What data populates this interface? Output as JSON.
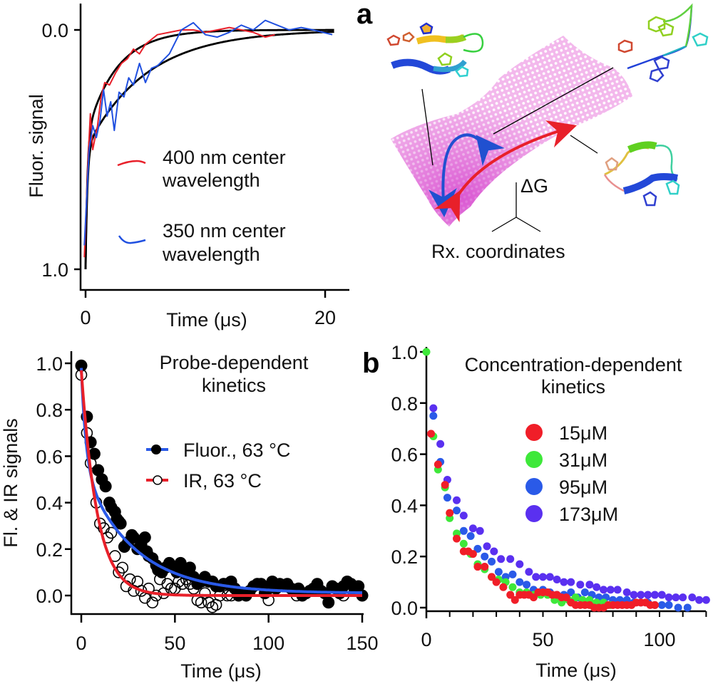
{
  "figure": {
    "panel_a_label": "a",
    "panel_b_label": "b",
    "landscape": {
      "delta_g_label": "ΔG",
      "rx_label": "Rx. coordinates",
      "surface_color": "#e060d0",
      "folding_arrow_color": "#2050d0",
      "unfolding_arrow_color": "#e8202a",
      "structures": [
        "folded-hairpin-structure",
        "unfolded-extended-structure",
        "intermediate-structure"
      ]
    }
  },
  "chart_data": [
    {
      "id": "fluor-wavelength",
      "type": "line",
      "title": "",
      "xlabel": "Time (μs)",
      "ylabel": "Fluor. signal",
      "xlim": [
        0,
        22
      ],
      "ylim": [
        0.0,
        1.0
      ],
      "y_inverted": true,
      "xticks": [
        0,
        20
      ],
      "xtick_labels": [
        "0",
        "20"
      ],
      "yticks": [
        0.0,
        1.0
      ],
      "ytick_labels": [
        "0.0",
        "1.0"
      ],
      "grid": false,
      "legend_position": "center-right",
      "series": [
        {
          "name": "400 nm center wavelength",
          "color": "#e8202a",
          "x": [
            -0.1,
            0.2,
            0.4,
            0.6,
            0.8,
            1.0,
            1.3,
            1.6,
            2.0,
            2.5,
            3.0,
            3.5,
            4.0,
            4.5,
            5.0,
            5.5,
            6.0,
            7.0,
            8.0,
            9.0,
            10.0,
            11.0,
            12.0,
            13.0,
            14.0,
            15.0,
            15.8
          ],
          "y": [
            0.95,
            0.55,
            0.35,
            0.5,
            0.45,
            0.4,
            0.28,
            0.22,
            0.23,
            0.18,
            0.14,
            0.12,
            0.08,
            0.1,
            0.06,
            0.04,
            0.02,
            0.01,
            0.0,
            0.0,
            0.01,
            0.0,
            -0.01,
            0.0,
            0.01,
            0.03,
            0.02
          ]
        },
        {
          "name": "350 nm center wavelength",
          "color": "#2050e0",
          "x": [
            -0.1,
            0.3,
            0.6,
            0.9,
            1.2,
            1.5,
            1.8,
            2.1,
            2.4,
            2.8,
            3.2,
            3.6,
            4.0,
            4.5,
            5.0,
            5.5,
            6.0,
            7.0,
            8.0,
            9.0,
            10.0,
            11.0,
            12.0,
            13.0,
            14.0,
            15.0,
            16.0,
            17.0,
            18.0,
            19.0,
            20.6
          ],
          "y": [
            0.9,
            0.5,
            0.4,
            0.45,
            0.38,
            0.25,
            0.36,
            0.3,
            0.42,
            0.26,
            0.28,
            0.2,
            0.23,
            0.14,
            0.22,
            0.16,
            0.15,
            0.1,
            0.0,
            -0.03,
            0.02,
            0.03,
            0.01,
            -0.02,
            0.0,
            -0.04,
            -0.02,
            0.0,
            -0.01,
            0.0,
            0.02
          ]
        },
        {
          "name": "fit 400 nm",
          "color": "#000000",
          "fit": "biexponential",
          "amplitudes": [
            0.55,
            0.45
          ],
          "taus": [
            0.15,
            2.5
          ]
        },
        {
          "name": "fit 350 nm",
          "color": "#000000",
          "fit": "biexponential",
          "amplitudes": [
            0.5,
            0.5
          ],
          "taus": [
            0.15,
            5.0
          ]
        }
      ]
    },
    {
      "id": "probe-dependent",
      "type": "scatter",
      "title": "Probe-dependent kinetics",
      "xlabel": "Time (μs)",
      "ylabel": "Fl. & IR signals",
      "xlim": [
        -5,
        150
      ],
      "ylim": [
        -0.07,
        1.0
      ],
      "xticks": [
        0,
        50,
        100,
        150
      ],
      "xtick_labels": [
        "0",
        "50",
        "100",
        "150"
      ],
      "yticks": [
        0.0,
        0.2,
        0.4,
        0.6,
        0.8,
        1.0
      ],
      "ytick_labels": [
        "0.0",
        "0.2",
        "0.4",
        "0.6",
        "0.8",
        "1.0"
      ],
      "grid": false,
      "legend_position": "top-right",
      "series": [
        {
          "name": "Fluor., 63 °C",
          "marker": "filled-circle",
          "marker_color": "#000000",
          "line_color": "#2a5ae8",
          "x": [
            0,
            3,
            5,
            7,
            9,
            11,
            13,
            15,
            16,
            18,
            19,
            20,
            21,
            23,
            25,
            27,
            28,
            30,
            32,
            34,
            35,
            36,
            38,
            40,
            41,
            43,
            45,
            47,
            49,
            51,
            53,
            55,
            57,
            58,
            60,
            62,
            64,
            66,
            68,
            70,
            72,
            74,
            76,
            78,
            80,
            82,
            84,
            86,
            88,
            90,
            92,
            94,
            96,
            98,
            100,
            102,
            104,
            106,
            108,
            110,
            112,
            114,
            116,
            118,
            120,
            122,
            124,
            126,
            128,
            130,
            132,
            134,
            136,
            138,
            140,
            142,
            144,
            146,
            148,
            150
          ],
          "y": [
            0.99,
            0.77,
            0.66,
            0.61,
            0.54,
            0.5,
            0.47,
            0.4,
            0.38,
            0.36,
            0.33,
            0.32,
            0.31,
            0.21,
            0.23,
            0.26,
            0.25,
            0.2,
            0.22,
            0.25,
            0.19,
            0.17,
            0.16,
            0.13,
            0.11,
            0.1,
            0.12,
            0.14,
            0.12,
            0.1,
            0.14,
            0.11,
            0.09,
            0.12,
            0.08,
            0.05,
            0.06,
            0.08,
            0.06,
            0.06,
            0.04,
            0.04,
            0.05,
            0.05,
            0.06,
            0.03,
            0.0,
            0.01,
            0.0,
            0.02,
            0.04,
            0.05,
            0.05,
            0.01,
            0.03,
            0.06,
            0.03,
            0.05,
            0.04,
            0.05,
            0.03,
            0.02,
            0.03,
            0.0,
            0.01,
            0.02,
            0.03,
            0.05,
            0.02,
            0.01,
            -0.03,
            0.04,
            0.03,
            0.01,
            0.04,
            0.06,
            0.05,
            0.02,
            0.04,
            0.0
          ]
        },
        {
          "name": "IR, 63 °C",
          "marker": "open-circle",
          "marker_color": "#000000",
          "line_color": "#e8202a",
          "x": [
            0,
            3,
            5,
            8,
            10,
            12,
            14,
            16,
            18,
            20,
            22,
            24,
            26,
            28,
            30,
            32,
            34,
            36,
            38,
            40,
            42,
            44,
            46,
            48,
            50,
            52,
            54,
            56,
            58,
            60,
            62,
            64,
            66,
            68,
            70,
            72,
            74,
            76,
            78,
            80,
            100,
            115,
            140
          ],
          "y": [
            0.95,
            0.7,
            0.57,
            0.4,
            0.31,
            0.29,
            0.25,
            0.27,
            0.17,
            0.1,
            0.12,
            0.04,
            0.07,
            0.02,
            0.06,
            0.02,
            -0.01,
            0.03,
            -0.03,
            0.0,
            0.07,
            0.01,
            0.05,
            0.03,
            0.03,
            0.06,
            0.05,
            0.07,
            0.05,
            0.03,
            -0.02,
            -0.03,
            0.01,
            -0.03,
            -0.05,
            -0.04,
            0.0,
            0.05,
            0.0,
            0.0,
            -0.02,
            0.0,
            0.0
          ]
        }
      ],
      "fits": [
        {
          "series": "Fluor., 63 °C",
          "type": "biexponential",
          "amplitudes": [
            0.42,
            0.55
          ],
          "taus": [
            2.5,
            27
          ],
          "offset": 0.01,
          "color": "#2a5ae8"
        },
        {
          "series": "IR, 63 °C",
          "type": "exponential",
          "amplitudes": [
            0.97
          ],
          "taus": [
            8.5
          ],
          "offset": 0.0,
          "color": "#e8202a"
        }
      ]
    },
    {
      "id": "concentration-dependent",
      "type": "scatter",
      "title": "Concentration-dependent kinetics",
      "xlabel": "Time (μs)",
      "ylabel": "",
      "xlim": [
        0,
        120
      ],
      "ylim": [
        -0.02,
        1.0
      ],
      "xticks": [
        0,
        50,
        100
      ],
      "xtick_labels": [
        "0",
        "50",
        "100"
      ],
      "minor_xtick_step": 10,
      "yticks": [
        0.0,
        0.2,
        0.4,
        0.6,
        0.8,
        1.0
      ],
      "ytick_labels": [
        "0.0",
        "0.2",
        "0.4",
        "0.6",
        "0.8",
        "1.0"
      ],
      "grid": false,
      "legend_position": "top-right",
      "series": [
        {
          "name": "15μM",
          "color": "#f01e28",
          "x": [
            2,
            5,
            8,
            10,
            13,
            16,
            18,
            20,
            22,
            25,
            28,
            30,
            33,
            36,
            38,
            40,
            42,
            44,
            46,
            48,
            50,
            52,
            54,
            56,
            58,
            60,
            62,
            64,
            66,
            68,
            70,
            72,
            74,
            76,
            78,
            80,
            82,
            84,
            86,
            88,
            90,
            92,
            94,
            96,
            98
          ],
          "y": [
            0.68,
            0.56,
            0.48,
            0.37,
            0.27,
            0.22,
            0.22,
            0.21,
            0.16,
            0.16,
            0.12,
            0.1,
            0.08,
            0.05,
            0.03,
            0.05,
            0.05,
            0.05,
            0.04,
            0.06,
            0.06,
            0.06,
            0.05,
            0.05,
            0.04,
            0.04,
            0.02,
            0.01,
            0.01,
            0.01,
            0.01,
            0.0,
            0.0,
            0.0,
            0.01,
            0.01,
            0.01,
            0.01,
            0.01,
            0.01,
            0.02,
            0.02,
            0.02,
            0.01,
            0.01
          ]
        },
        {
          "name": "31μM",
          "color": "#3ee83a",
          "x": [
            0,
            3,
            5,
            8,
            10,
            13,
            16,
            19,
            22,
            25,
            28,
            31,
            34,
            37,
            40,
            43,
            46,
            49,
            52,
            55,
            58,
            61,
            64,
            67,
            70,
            73,
            76,
            79
          ],
          "y": [
            1.0,
            0.67,
            0.54,
            0.47,
            0.35,
            0.29,
            0.25,
            0.21,
            0.17,
            0.15,
            0.12,
            0.11,
            0.1,
            0.08,
            0.06,
            0.06,
            0.05,
            0.05,
            0.05,
            0.03,
            0.02,
            0.03,
            0.04,
            0.03,
            0.03,
            0.02,
            0.02,
            0.01
          ]
        },
        {
          "name": "95μM",
          "color": "#2a5ae8",
          "x": [
            3,
            6,
            9,
            13,
            16,
            19,
            22,
            25,
            28,
            31,
            34,
            37,
            40,
            43,
            46,
            50,
            53,
            56,
            59,
            62,
            65,
            68,
            71,
            74,
            77,
            80,
            83,
            86,
            89,
            92,
            95,
            98,
            101,
            104,
            108,
            112
          ],
          "y": [
            0.75,
            0.57,
            0.43,
            0.38,
            0.3,
            0.28,
            0.23,
            0.2,
            0.18,
            0.14,
            0.12,
            0.13,
            0.1,
            0.09,
            0.07,
            0.07,
            0.06,
            0.05,
            0.05,
            0.06,
            0.04,
            0.06,
            0.05,
            0.04,
            0.04,
            0.03,
            0.03,
            0.03,
            0.02,
            0.02,
            0.02,
            0.01,
            0.01,
            0.01,
            0.0,
            0.0
          ]
        },
        {
          "name": "173μM",
          "color": "#5a30f0",
          "x": [
            3,
            6,
            9,
            13,
            16,
            20,
            23,
            26,
            29,
            32,
            36,
            40,
            44,
            47,
            50,
            53,
            56,
            59,
            62,
            66,
            70,
            73,
            76,
            79,
            82,
            86,
            89,
            92,
            95,
            98,
            101,
            104,
            107,
            110,
            114,
            117,
            120
          ],
          "y": [
            0.78,
            0.64,
            0.5,
            0.42,
            0.36,
            0.31,
            0.3,
            0.24,
            0.22,
            0.19,
            0.19,
            0.17,
            0.14,
            0.12,
            0.12,
            0.12,
            0.11,
            0.1,
            0.1,
            0.09,
            0.09,
            0.08,
            0.07,
            0.07,
            0.07,
            0.06,
            0.05,
            0.05,
            0.05,
            0.05,
            0.05,
            0.04,
            0.04,
            0.04,
            0.04,
            0.03,
            0.03
          ]
        }
      ]
    }
  ]
}
